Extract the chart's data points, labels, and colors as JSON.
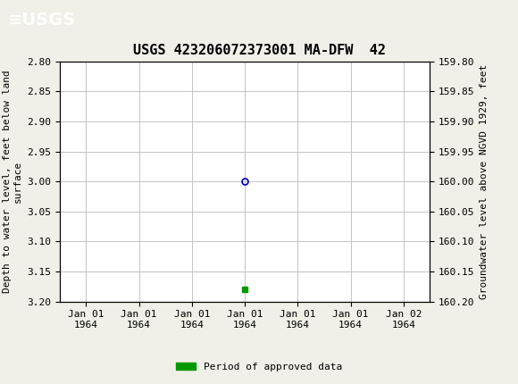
{
  "title": "USGS 423206072373001 MA-DFW  42",
  "title_fontsize": 11,
  "header_bg_color": "#1a7040",
  "plot_bg_color": "#ffffff",
  "grid_color": "#bbbbbb",
  "ylabel_left": "Depth to water level, feet below land\nsurface",
  "ylabel_right": "Groundwater level above NGVD 1929, feet",
  "ylim_left": [
    2.8,
    3.2
  ],
  "ylim_right": [
    159.8,
    160.2
  ],
  "yticks_left": [
    2.8,
    2.85,
    2.9,
    2.95,
    3.0,
    3.05,
    3.1,
    3.15,
    3.2
  ],
  "yticks_right": [
    160.2,
    160.15,
    160.1,
    160.05,
    160.0,
    159.95,
    159.9,
    159.85,
    159.8
  ],
  "data_point_y": 3.0,
  "data_point_color": "#0000bb",
  "bar_y": 3.18,
  "bar_color": "#009900",
  "legend_label": "Period of approved data",
  "font_family": "DejaVu Sans Mono",
  "tick_fontsize": 8,
  "label_fontsize": 8,
  "x_tick_labels": [
    "Jan 01\n1964",
    "Jan 01\n1964",
    "Jan 01\n1964",
    "Jan 01\n1964",
    "Jan 01\n1964",
    "Jan 01\n1964",
    "Jan 02\n1964"
  ],
  "x_tick_positions": [
    -3.0,
    -2.0,
    -1.0,
    0.0,
    1.0,
    2.0,
    3.0
  ],
  "data_point_x": 0.0,
  "bar_x": 0.0,
  "xlim": [
    -3.5,
    3.5
  ]
}
